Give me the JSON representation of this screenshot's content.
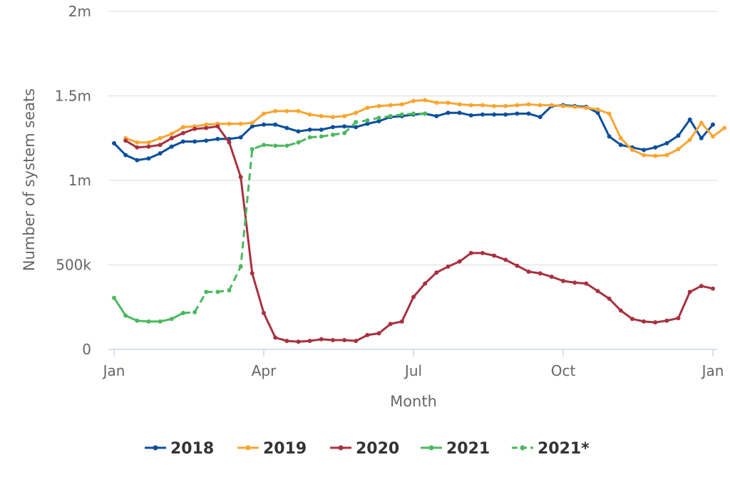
{
  "chart_data": {
    "type": "line",
    "xlabel": "Month",
    "ylabel": "Number of system seats",
    "xlim": [
      1,
      53
    ],
    "ylim": [
      0,
      2000000
    ],
    "grid": true,
    "legend_position": "bottom",
    "x_ticks": [
      {
        "label": "Jan",
        "week": 1
      },
      {
        "label": "Apr",
        "week": 14
      },
      {
        "label": "Jul",
        "week": 27
      },
      {
        "label": "Oct",
        "week": 40
      },
      {
        "label": "Jan",
        "week": 53
      }
    ],
    "y_ticks": [
      {
        "label": "0",
        "value": 0
      },
      {
        "label": "500k",
        "value": 500000
      },
      {
        "label": "1m",
        "value": 1000000
      },
      {
        "label": "1.5m",
        "value": 1500000
      },
      {
        "label": "2m",
        "value": 2000000
      }
    ],
    "series": [
      {
        "name": "2018",
        "color": "#0b4f9c",
        "dashed": false,
        "start_week": 1,
        "values": [
          1220000,
          1150000,
          1120000,
          1130000,
          1160000,
          1200000,
          1230000,
          1230000,
          1235000,
          1245000,
          1245000,
          1255000,
          1320000,
          1330000,
          1330000,
          1310000,
          1290000,
          1300000,
          1300000,
          1315000,
          1320000,
          1315000,
          1335000,
          1350000,
          1375000,
          1380000,
          1390000,
          1395000,
          1380000,
          1400000,
          1400000,
          1385000,
          1390000,
          1390000,
          1390000,
          1395000,
          1395000,
          1375000,
          1440000,
          1445000,
          1440000,
          1435000,
          1400000,
          1260000,
          1210000,
          1195000,
          1180000,
          1195000,
          1220000,
          1265000,
          1360000,
          1250000,
          1330000
        ]
      },
      {
        "name": "2019",
        "color": "#f9a533",
        "dashed": false,
        "start_week": 2,
        "values": [
          1250000,
          1225000,
          1225000,
          1250000,
          1275000,
          1315000,
          1320000,
          1330000,
          1335000,
          1335000,
          1335000,
          1340000,
          1395000,
          1410000,
          1410000,
          1410000,
          1390000,
          1380000,
          1375000,
          1380000,
          1400000,
          1430000,
          1440000,
          1445000,
          1450000,
          1470000,
          1475000,
          1460000,
          1460000,
          1450000,
          1445000,
          1445000,
          1440000,
          1440000,
          1445000,
          1450000,
          1445000,
          1445000,
          1440000,
          1435000,
          1430000,
          1420000,
          1395000,
          1250000,
          1180000,
          1150000,
          1145000,
          1150000,
          1185000,
          1240000,
          1340000,
          1260000,
          1310000
        ]
      },
      {
        "name": "2020",
        "color": "#a8313f",
        "dashed": false,
        "start_week": 2,
        "values": [
          1235000,
          1195000,
          1200000,
          1210000,
          1250000,
          1280000,
          1305000,
          1310000,
          1320000,
          1225000,
          1020000,
          450000,
          215000,
          70000,
          50000,
          45000,
          50000,
          60000,
          55000,
          55000,
          50000,
          85000,
          95000,
          150000,
          165000,
          310000,
          390000,
          455000,
          490000,
          520000,
          570000,
          570000,
          555000,
          530000,
          495000,
          460000,
          450000,
          430000,
          405000,
          395000,
          390000,
          345000,
          300000,
          230000,
          180000,
          165000,
          160000,
          170000,
          185000,
          340000,
          375000,
          360000
        ]
      },
      {
        "name": "2021",
        "color": "#4cb85e",
        "dashed": false,
        "start_week": 1,
        "values": [
          305000,
          200000,
          170000,
          165000,
          165000,
          180000,
          215000
        ]
      },
      {
        "name": "2021*",
        "color": "#4cb85e",
        "dashed": true,
        "start_week": 7,
        "values": [
          215000,
          220000,
          340000,
          340000,
          350000,
          490000,
          1185000,
          1210000,
          1205000,
          1205000,
          1225000,
          1255000,
          1260000,
          1270000,
          1280000,
          1345000,
          1355000,
          1370000,
          1380000,
          1390000,
          1395000,
          1395000
        ]
      }
    ]
  }
}
